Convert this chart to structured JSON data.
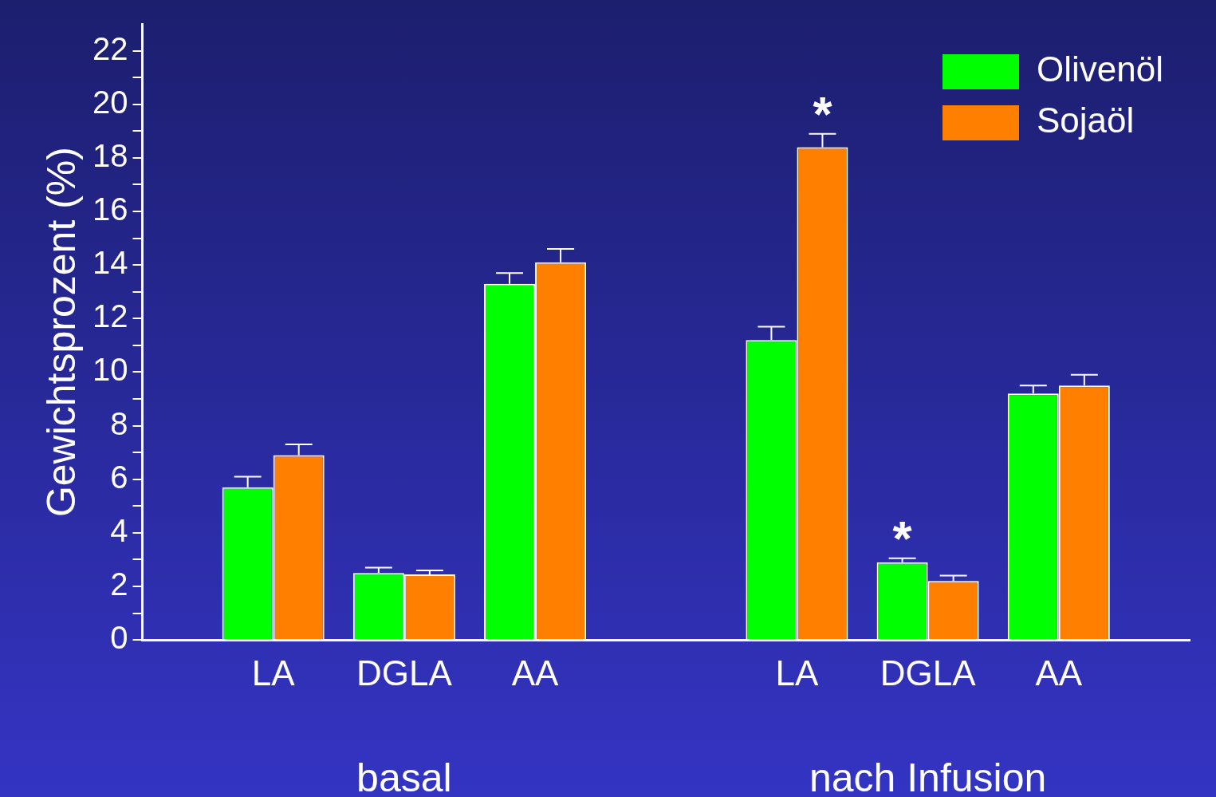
{
  "chart_data": {
    "type": "bar",
    "ylabel": "Gewichtsprozent (%)",
    "categories": [
      null,
      "LA",
      "DGLA",
      "AA",
      null,
      "LA",
      "DGLA",
      "AA",
      null
    ],
    "series": [
      {
        "name": "Olivenöl",
        "color": "#00ff00",
        "values": [
          null,
          5.7,
          2.5,
          13.3,
          null,
          11.2,
          2.9,
          9.2,
          null
        ],
        "errors": [
          null,
          [
            5.7,
            6.1
          ],
          [
            2.5,
            2.7
          ],
          [
            13.3,
            13.7
          ],
          null,
          [
            11.2,
            11.7
          ],
          [
            2.9,
            3.05
          ],
          [
            9.2,
            9.5
          ],
          null
        ],
        "value_labels": [
          null,
          null,
          null,
          null,
          null,
          null,
          "*",
          null,
          null
        ]
      },
      {
        "name": "Sojaöl",
        "color": "#ff8000",
        "values": [
          null,
          6.9,
          2.45,
          14.1,
          null,
          18.4,
          2.2,
          9.5,
          null
        ],
        "errors": [
          null,
          [
            6.9,
            7.3
          ],
          [
            2.45,
            2.6
          ],
          [
            14.1,
            14.6
          ],
          null,
          [
            18.4,
            18.9
          ],
          [
            2.2,
            2.4
          ],
          [
            9.5,
            9.9
          ],
          null
        ],
        "value_labels": [
          null,
          null,
          null,
          null,
          null,
          "*",
          null,
          null,
          null
        ]
      }
    ],
    "ylim": [
      0,
      23
    ],
    "yticks": [
      0,
      {
        "value": 1,
        "label": null
      },
      2,
      {
        "value": 3,
        "label": null
      },
      4,
      {
        "value": 5,
        "label": null
      },
      6,
      {
        "value": 7,
        "label": null
      },
      8,
      {
        "value": 9,
        "label": null
      },
      10,
      {
        "value": 11,
        "label": null
      },
      12,
      {
        "value": 13,
        "label": null
      },
      14,
      {
        "value": 15,
        "label": null
      },
      16,
      {
        "value": 17,
        "label": null
      },
      18,
      {
        "value": 19,
        "label": null
      },
      20,
      {
        "value": 21,
        "label": null
      },
      22
    ],
    "annotations": [
      "basal",
      "nach Infusion"
    ],
    "grid": false,
    "legend": "top right"
  }
}
